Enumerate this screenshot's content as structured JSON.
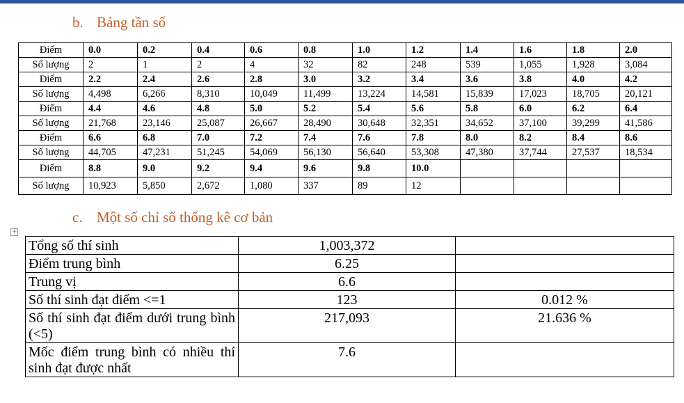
{
  "section_b": {
    "num": "b.",
    "title": "Bảng tần số"
  },
  "section_c": {
    "num": "c.",
    "title": "Một số chỉ số thống kê cơ bản"
  },
  "freq_table": {
    "score_label": "Điểm",
    "count_label": "Số lượng",
    "blocks": [
      {
        "scores": [
          "0.0",
          "0.2",
          "0.4",
          "0.6",
          "0.8",
          "1.0",
          "1.2",
          "1.4",
          "1.6",
          "1.8",
          "2.0"
        ],
        "counts": [
          "2",
          "1",
          "2",
          "4",
          "32",
          "82",
          "248",
          "539",
          "1,055",
          "1,928",
          "3,084"
        ]
      },
      {
        "scores": [
          "2.2",
          "2.4",
          "2.6",
          "2.8",
          "3.0",
          "3.2",
          "3.4",
          "3.6",
          "3.8",
          "4.0",
          "4.2"
        ],
        "counts": [
          "4,498",
          "6,266",
          "8,310",
          "10,049",
          "11,499",
          "13,224",
          "14,581",
          "15,839",
          "17,023",
          "18,705",
          "20,121"
        ]
      },
      {
        "scores": [
          "4.4",
          "4.6",
          "4.8",
          "5.0",
          "5.2",
          "5.4",
          "5.6",
          "5.8",
          "6.0",
          "6.2",
          "6.4"
        ],
        "counts": [
          "21,768",
          "23,146",
          "25,087",
          "26,667",
          "28,490",
          "30,648",
          "32,351",
          "34,652",
          "37,100",
          "39,299",
          "41,586"
        ]
      },
      {
        "scores": [
          "6.6",
          "6.8",
          "7.0",
          "7.2",
          "7.4",
          "7.6",
          "7.8",
          "8.0",
          "8.2",
          "8.4",
          "8.6"
        ],
        "counts": [
          "44,705",
          "47,231",
          "51,245",
          "54,069",
          "56,130",
          "56,640",
          "53,308",
          "47,380",
          "37,744",
          "27,537",
          "18,534"
        ]
      },
      {
        "scores": [
          "8.8",
          "9.0",
          "9.2",
          "9.4",
          "9.6",
          "9.8",
          "10.0",
          "",
          "",
          "",
          ""
        ],
        "counts": [
          "10,923",
          "5,850",
          "2,672",
          "1,080",
          "337",
          "89",
          "12",
          "",
          "",
          "",
          ""
        ]
      }
    ]
  },
  "stats_table": {
    "rows": [
      {
        "label": "Tổng số thí sinh",
        "value": "1,003,372",
        "percent": ""
      },
      {
        "label": "Điểm trung bình",
        "value": "6.25",
        "percent": ""
      },
      {
        "label": "Trung vị",
        "value": "6.6",
        "percent": ""
      },
      {
        "label": "Số thí sinh đạt điểm <=1",
        "value": "123",
        "percent": "0.012 %"
      },
      {
        "label": "Số thí sinh đạt điểm dưới trung bình (<5)",
        "value": "217,093",
        "percent": "21.636 %"
      },
      {
        "label": "Mốc điểm trung bình có nhiều thí sinh đạt được nhất",
        "value": "7.6",
        "percent": ""
      }
    ]
  }
}
